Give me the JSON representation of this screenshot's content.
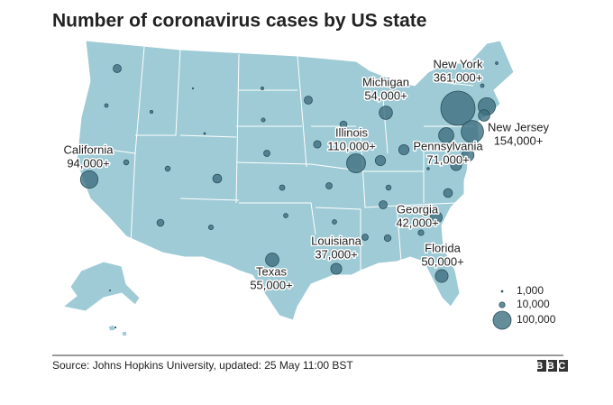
{
  "title": "Number of coronavirus cases by US state",
  "map": {
    "states": [
      {
        "label": "New York",
        "value": 361000,
        "value_label": "361,000+"
      },
      {
        "label": "New Jersey",
        "value": 154000,
        "value_label": "154,000+"
      },
      {
        "label": "Michigan",
        "value": 54000,
        "value_label": "54,000+"
      },
      {
        "label": "Illinois",
        "value": 110000,
        "value_label": "110,000+"
      },
      {
        "label": "Pennsylvania",
        "value": 71000,
        "value_label": "71,000+"
      },
      {
        "label": "California",
        "value": 94000,
        "value_label": "94,000+"
      },
      {
        "label": "Georgia",
        "value": 42000,
        "value_label": "42,000+"
      },
      {
        "label": "Louisiana",
        "value": 37000,
        "value_label": "37,000+"
      },
      {
        "label": "Florida",
        "value": 50000,
        "value_label": "50,000+"
      },
      {
        "label": "Texas",
        "value": 55000,
        "value_label": "55,000+"
      }
    ],
    "other_values": [
      20000,
      4000,
      2700,
      500,
      900,
      8000,
      8000,
      15000,
      24000,
      7000,
      2400,
      4500,
      12000,
      9000,
      6000,
      20000,
      17000,
      12000,
      6000,
      15000,
      32000,
      32000,
      8000,
      20000,
      12000,
      14000,
      10000,
      24000,
      37000,
      46000,
      92000,
      40000,
      2000,
      1000,
      4000,
      1700,
      400,
      600
    ],
    "legend": [
      {
        "value": 1000,
        "label": "1,000"
      },
      {
        "value": 10000,
        "label": "10,000"
      },
      {
        "value": 100000,
        "label": "100,000"
      }
    ]
  },
  "footer": {
    "source": "Source: Johns Hopkins University, updated: 25 May 11:00 BST",
    "logo": "BBC"
  }
}
